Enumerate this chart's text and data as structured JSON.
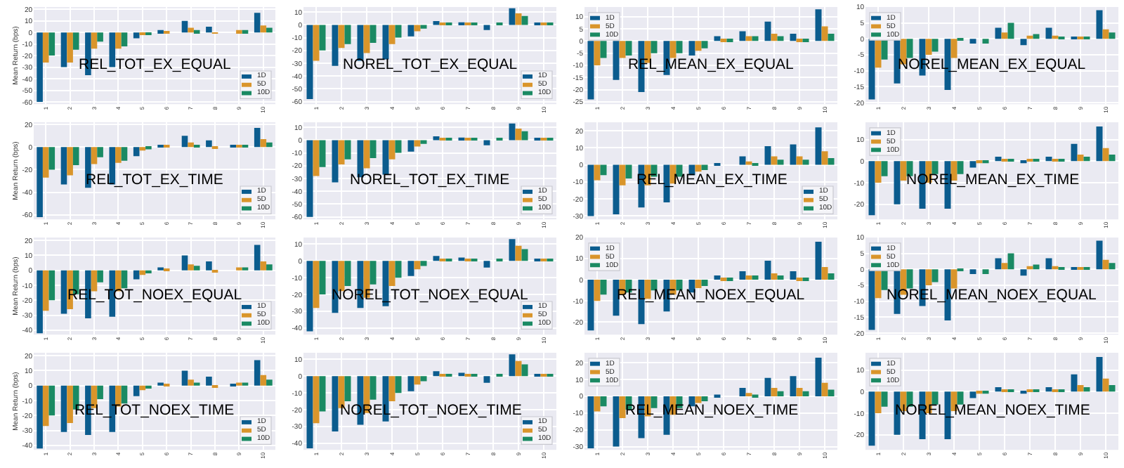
{
  "chart_data": [
    {
      "type": "bar",
      "title": "REL_TOT_EX_EQUAL",
      "ylabel": "Mean Return (bps)",
      "categories": [
        "1",
        "2",
        "3",
        "4",
        "5",
        "6",
        "7",
        "8",
        "9",
        "10"
      ],
      "ylim": [
        -62,
        22
      ],
      "yticks": [
        -60,
        -50,
        -40,
        -30,
        -20,
        -10,
        0,
        10,
        20
      ],
      "grid": true,
      "legend": "bottom right",
      "series": [
        {
          "name": "1D",
          "color": "#0b5c8e",
          "values": [
            -60,
            -30,
            -37,
            -30,
            -5,
            2,
            10,
            5,
            0,
            17
          ]
        },
        {
          "name": "5D",
          "color": "#d9952b",
          "values": [
            -26,
            -26,
            -14,
            -14,
            -2,
            1,
            4,
            -1,
            2,
            6
          ]
        },
        {
          "name": "10D",
          "color": "#1a8a63",
          "values": [
            -20,
            -15,
            -8,
            -12,
            -2,
            0,
            2,
            0,
            2,
            4
          ]
        }
      ]
    },
    {
      "type": "bar",
      "title": "NOREL_TOT_EX_EQUAL",
      "categories": [
        "1",
        "2",
        "3",
        "4",
        "5",
        "6",
        "7",
        "8",
        "9",
        "10"
      ],
      "ylim": [
        -62,
        14
      ],
      "yticks": [
        -60,
        -50,
        -40,
        -30,
        -20,
        -10,
        0,
        10
      ],
      "grid": true,
      "legend": "bottom right",
      "series": [
        {
          "name": "1D",
          "color": "#0b5c8e",
          "values": [
            -58,
            -32,
            -28,
            -27,
            -9,
            3,
            2,
            -4,
            13,
            1
          ]
        },
        {
          "name": "5D",
          "color": "#d9952b",
          "values": [
            -28,
            -18,
            -22,
            -15,
            -5,
            1,
            1,
            0,
            9,
            1
          ]
        },
        {
          "name": "10D",
          "color": "#1a8a63",
          "values": [
            -20,
            -15,
            -14,
            -10,
            -3,
            1,
            1,
            1,
            7,
            1
          ]
        }
      ]
    },
    {
      "type": "bar",
      "title": "REL_MEAN_EX_EQUAL",
      "categories": [
        "1",
        "2",
        "3",
        "4",
        "5",
        "6",
        "7",
        "8",
        "9",
        "10"
      ],
      "ylim": [
        -26,
        14
      ],
      "yticks": [
        -25,
        -20,
        -15,
        -10,
        -5,
        0,
        5,
        10
      ],
      "grid": true,
      "legend": "top left",
      "series": [
        {
          "name": "1D",
          "color": "#0b5c8e",
          "values": [
            -24,
            -16,
            -21,
            -14,
            -6,
            2,
            4,
            8,
            3,
            13
          ]
        },
        {
          "name": "5D",
          "color": "#d9952b",
          "values": [
            -10,
            -7,
            -9,
            -7,
            -4,
            1,
            2,
            3,
            1,
            6
          ]
        },
        {
          "name": "10D",
          "color": "#1a8a63",
          "values": [
            -7,
            -6,
            -5,
            -5,
            -3,
            1,
            2,
            2,
            1,
            3
          ]
        }
      ]
    },
    {
      "type": "bar",
      "title": "NOREL_MEAN_EX_EQUAL",
      "categories": [
        "1",
        "2",
        "3",
        "4",
        "5",
        "6",
        "7",
        "8",
        "9",
        "10"
      ],
      "ylim": [
        -20.5,
        10
      ],
      "yticks": [
        -20,
        -15,
        -10,
        -5,
        0,
        5,
        10
      ],
      "grid": true,
      "legend": "top left",
      "series": [
        {
          "name": "1D",
          "color": "#0b5c8e",
          "values": [
            -19,
            -14,
            -11.5,
            -16,
            -1.5,
            3.5,
            -2,
            3.5,
            0.5,
            9
          ]
        },
        {
          "name": "5D",
          "color": "#d9952b",
          "values": [
            -9,
            -8,
            -5,
            -6,
            0,
            2,
            1,
            1,
            0.5,
            3
          ]
        },
        {
          "name": "10D",
          "color": "#1a8a63",
          "values": [
            -6.5,
            -6,
            -4,
            -0.5,
            -1.5,
            5,
            1.5,
            0.5,
            0.5,
            2
          ]
        }
      ]
    },
    {
      "type": "bar",
      "title": "REL_TOT_EX_TIME",
      "ylabel": "Mean Return (bps)",
      "categories": [
        "1",
        "2",
        "3",
        "4",
        "5",
        "6",
        "7",
        "8",
        "9",
        "10"
      ],
      "ylim": [
        -64,
        22
      ],
      "yticks": [
        -60,
        -40,
        -20,
        0,
        20
      ],
      "grid": true,
      "legend": "bottom right",
      "series": [
        {
          "name": "1D",
          "color": "#0b5c8e",
          "values": [
            -62,
            -33,
            -36,
            -33,
            -8,
            2,
            10,
            6,
            1,
            17
          ]
        },
        {
          "name": "5D",
          "color": "#d9952b",
          "values": [
            -27,
            -25,
            -15,
            -14,
            -3,
            1,
            4,
            -1,
            2,
            7
          ]
        },
        {
          "name": "10D",
          "color": "#1a8a63",
          "values": [
            -20,
            -16,
            -9,
            -12,
            -2,
            0,
            2,
            0,
            2,
            4
          ]
        }
      ]
    },
    {
      "type": "bar",
      "title": "NOREL_TOT_EX_TIME",
      "categories": [
        "1",
        "2",
        "3",
        "4",
        "5",
        "6",
        "7",
        "8",
        "9",
        "10"
      ],
      "ylim": [
        -62,
        14
      ],
      "yticks": [
        -60,
        -50,
        -40,
        -30,
        -20,
        -10,
        0,
        10
      ],
      "grid": true,
      "legend": "bottom right",
      "series": [
        {
          "name": "1D",
          "color": "#0b5c8e",
          "values": [
            -60,
            -33,
            -29,
            -27,
            -9,
            3,
            2,
            -4,
            13,
            1
          ]
        },
        {
          "name": "5D",
          "color": "#d9952b",
          "values": [
            -28,
            -19,
            -22,
            -15,
            -5,
            1,
            1,
            0,
            9,
            1
          ]
        },
        {
          "name": "10D",
          "color": "#1a8a63",
          "values": [
            -21,
            -15,
            -14,
            -10,
            -3,
            1,
            1,
            1,
            7,
            1
          ]
        }
      ]
    },
    {
      "type": "bar",
      "title": "REL_MEAN_EX_TIME",
      "categories": [
        "1",
        "2",
        "3",
        "4",
        "5",
        "6",
        "7",
        "8",
        "9",
        "10"
      ],
      "ylim": [
        -32,
        25
      ],
      "yticks": [
        -30,
        -20,
        -10,
        0,
        10,
        20
      ],
      "grid": true,
      "legend": "bottom right",
      "series": [
        {
          "name": "1D",
          "color": "#0b5c8e",
          "values": [
            -30,
            -29,
            -25,
            -22,
            -6,
            1,
            5,
            11,
            12,
            22
          ]
        },
        {
          "name": "5D",
          "color": "#d9952b",
          "values": [
            -9,
            -12,
            -12,
            -11,
            -4,
            0,
            2,
            5,
            5,
            8
          ]
        },
        {
          "name": "10D",
          "color": "#1a8a63",
          "values": [
            -6,
            -8,
            -7,
            -7,
            -3,
            0,
            1,
            3,
            3,
            4
          ]
        }
      ]
    },
    {
      "type": "bar",
      "title": "NOREL_MEAN_EX_TIME",
      "categories": [
        "1",
        "2",
        "3",
        "4",
        "5",
        "6",
        "7",
        "8",
        "9",
        "10"
      ],
      "ylim": [
        -27,
        18
      ],
      "yticks": [
        -20,
        -10,
        0,
        10
      ],
      "grid": true,
      "legend": "top left",
      "series": [
        {
          "name": "1D",
          "color": "#0b5c8e",
          "values": [
            -25,
            -20,
            -22,
            -22,
            -3,
            2,
            -1,
            2,
            8,
            16
          ]
        },
        {
          "name": "5D",
          "color": "#d9952b",
          "values": [
            -10,
            -9,
            -10,
            -9,
            -1,
            1,
            1,
            1,
            3,
            6
          ]
        },
        {
          "name": "10D",
          "color": "#1a8a63",
          "values": [
            -7,
            -7,
            -6,
            -6,
            -1,
            1,
            1,
            1,
            2,
            3
          ]
        }
      ]
    },
    {
      "type": "bar",
      "title": "REL_TOT_NOEX_EQUAL",
      "ylabel": "Mean Return (bps)",
      "categories": [
        "1",
        "2",
        "3",
        "4",
        "5",
        "6",
        "7",
        "8",
        "9",
        "10"
      ],
      "ylim": [
        -43,
        22
      ],
      "yticks": [
        -40,
        -30,
        -20,
        -10,
        0,
        10,
        20
      ],
      "grid": true,
      "legend": "bottom right",
      "series": [
        {
          "name": "1D",
          "color": "#0b5c8e",
          "values": [
            -42,
            -29,
            -32,
            -31,
            -6,
            2,
            10,
            6,
            0,
            17
          ]
        },
        {
          "name": "5D",
          "color": "#d9952b",
          "values": [
            -27,
            -26,
            -14,
            -14,
            -3,
            1,
            4,
            -1,
            2,
            6
          ]
        },
        {
          "name": "10D",
          "color": "#1a8a63",
          "values": [
            -20,
            -16,
            -8,
            -12,
            -2,
            0,
            3,
            0,
            2,
            4
          ]
        }
      ]
    },
    {
      "type": "bar",
      "title": "NOREL_TOT_NOEX_EQUAL",
      "categories": [
        "1",
        "2",
        "3",
        "4",
        "5",
        "6",
        "7",
        "8",
        "9",
        "10"
      ],
      "ylim": [
        -44,
        14
      ],
      "yticks": [
        -40,
        -30,
        -20,
        -10,
        0,
        10
      ],
      "grid": true,
      "legend": "bottom right",
      "series": [
        {
          "name": "1D",
          "color": "#0b5c8e",
          "values": [
            -42,
            -31,
            -28,
            -27,
            -9,
            3,
            2,
            -4,
            13,
            1
          ]
        },
        {
          "name": "5D",
          "color": "#d9952b",
          "values": [
            -28,
            -18,
            -22,
            -15,
            -5,
            1,
            1,
            0,
            9,
            1
          ]
        },
        {
          "name": "10D",
          "color": "#1a8a63",
          "values": [
            -20,
            -15,
            -14,
            -10,
            -3,
            1,
            1,
            1,
            7,
            1
          ]
        }
      ]
    },
    {
      "type": "bar",
      "title": "REL_MEAN_NOEX_EQUAL",
      "categories": [
        "1",
        "2",
        "3",
        "4",
        "5",
        "6",
        "7",
        "8",
        "9",
        "10"
      ],
      "ylim": [
        -26,
        20
      ],
      "yticks": [
        -20,
        -10,
        0,
        10,
        20
      ],
      "grid": true,
      "legend": "top left",
      "series": [
        {
          "name": "1D",
          "color": "#0b5c8e",
          "values": [
            -24,
            -17,
            -21,
            -15,
            -6,
            2,
            4,
            9,
            4,
            18
          ]
        },
        {
          "name": "5D",
          "color": "#d9952b",
          "values": [
            -10,
            -7,
            -9,
            -7,
            -4,
            1,
            2,
            3,
            1,
            6
          ]
        },
        {
          "name": "10D",
          "color": "#1a8a63",
          "values": [
            -7,
            -6,
            -5,
            -5,
            -3,
            1,
            2,
            2,
            1,
            3
          ]
        }
      ]
    },
    {
      "type": "bar",
      "title": "NOREL_MEAN_NOEX_EQUAL",
      "categories": [
        "1",
        "2",
        "3",
        "4",
        "5",
        "6",
        "7",
        "8",
        "9",
        "10"
      ],
      "ylim": [
        -20.5,
        10
      ],
      "yticks": [
        -20,
        -15,
        -10,
        -5,
        0,
        5,
        10
      ],
      "grid": true,
      "legend": "top left",
      "series": [
        {
          "name": "1D",
          "color": "#0b5c8e",
          "values": [
            -19,
            -14,
            -11.5,
            -16,
            -1.5,
            3.5,
            -2,
            3.5,
            0.5,
            9
          ]
        },
        {
          "name": "5D",
          "color": "#d9952b",
          "values": [
            -9,
            -8,
            -5,
            -6,
            0,
            2,
            1,
            1,
            0.5,
            3
          ]
        },
        {
          "name": "10D",
          "color": "#1a8a63",
          "values": [
            -6.5,
            -6,
            -4,
            -0.5,
            -1.5,
            5,
            1.5,
            0.5,
            0.5,
            2
          ]
        }
      ]
    },
    {
      "type": "bar",
      "title": "REL_TOT_NOEX_TIME",
      "ylabel": "Mean Return (bps)",
      "categories": [
        "1",
        "2",
        "3",
        "4",
        "5",
        "6",
        "7",
        "8",
        "9",
        "10"
      ],
      "ylim": [
        -43,
        22
      ],
      "yticks": [
        -40,
        -30,
        -20,
        -10,
        0,
        10,
        20
      ],
      "grid": true,
      "legend": "bottom right",
      "series": [
        {
          "name": "1D",
          "color": "#0b5c8e",
          "values": [
            -42,
            -31,
            -33,
            -31,
            -7,
            2,
            10,
            6,
            1,
            17
          ]
        },
        {
          "name": "5D",
          "color": "#d9952b",
          "values": [
            -27,
            -25,
            -15,
            -14,
            -3,
            1,
            4,
            -1,
            2,
            7
          ]
        },
        {
          "name": "10D",
          "color": "#1a8a63",
          "values": [
            -20,
            -16,
            -9,
            -12,
            -2,
            0,
            2,
            0,
            2,
            4
          ]
        }
      ]
    },
    {
      "type": "bar",
      "title": "NOREL_TOT_NOEX_TIME",
      "categories": [
        "1",
        "2",
        "3",
        "4",
        "5",
        "6",
        "7",
        "8",
        "9",
        "10"
      ],
      "ylim": [
        -44,
        14
      ],
      "yticks": [
        -40,
        -30,
        -20,
        -10,
        0,
        10
      ],
      "grid": true,
      "legend": "bottom right",
      "series": [
        {
          "name": "1D",
          "color": "#0b5c8e",
          "values": [
            -43,
            -33,
            -29,
            -27,
            -9,
            3,
            2,
            -4,
            13,
            1
          ]
        },
        {
          "name": "5D",
          "color": "#d9952b",
          "values": [
            -28,
            -19,
            -22,
            -15,
            -5,
            1,
            1,
            0,
            9,
            1
          ]
        },
        {
          "name": "10D",
          "color": "#1a8a63",
          "values": [
            -21,
            -15,
            -14,
            -10,
            -3,
            1,
            1,
            1,
            7,
            1
          ]
        }
      ]
    },
    {
      "type": "bar",
      "title": "REL_MEAN_NOEX_TIME",
      "categories": [
        "1",
        "2",
        "3",
        "4",
        "5",
        "6",
        "7",
        "8",
        "9",
        "10"
      ],
      "ylim": [
        -32,
        26
      ],
      "yticks": [
        -30,
        -20,
        -10,
        0,
        10,
        20
      ],
      "grid": true,
      "legend": "top left",
      "series": [
        {
          "name": "1D",
          "color": "#0b5c8e",
          "values": [
            -31,
            -30,
            -25,
            -23,
            -6,
            1,
            5,
            11,
            12,
            23
          ]
        },
        {
          "name": "5D",
          "color": "#d9952b",
          "values": [
            -9,
            -13,
            -12,
            -11,
            -4,
            0,
            2,
            5,
            5,
            8
          ]
        },
        {
          "name": "10D",
          "color": "#1a8a63",
          "values": [
            -6,
            -8,
            -7,
            -7,
            -3,
            0,
            1,
            3,
            3,
            4
          ]
        }
      ]
    },
    {
      "type": "bar",
      "title": "NOREL_MEAN_NOEX_TIME",
      "categories": [
        "1",
        "2",
        "3",
        "4",
        "5",
        "6",
        "7",
        "8",
        "9",
        "10"
      ],
      "ylim": [
        -27,
        18
      ],
      "yticks": [
        -20,
        -10,
        0,
        10
      ],
      "grid": true,
      "legend": "top left",
      "series": [
        {
          "name": "1D",
          "color": "#0b5c8e",
          "values": [
            -25,
            -20,
            -22,
            -22,
            -3,
            2,
            -1,
            2,
            8,
            16
          ]
        },
        {
          "name": "5D",
          "color": "#d9952b",
          "values": [
            -10,
            -9,
            -10,
            -9,
            -1,
            1,
            1,
            1,
            3,
            6
          ]
        },
        {
          "name": "10D",
          "color": "#1a8a63",
          "values": [
            -7,
            -7,
            -6,
            -6,
            -1,
            1,
            1,
            1,
            2,
            3
          ]
        }
      ]
    }
  ]
}
